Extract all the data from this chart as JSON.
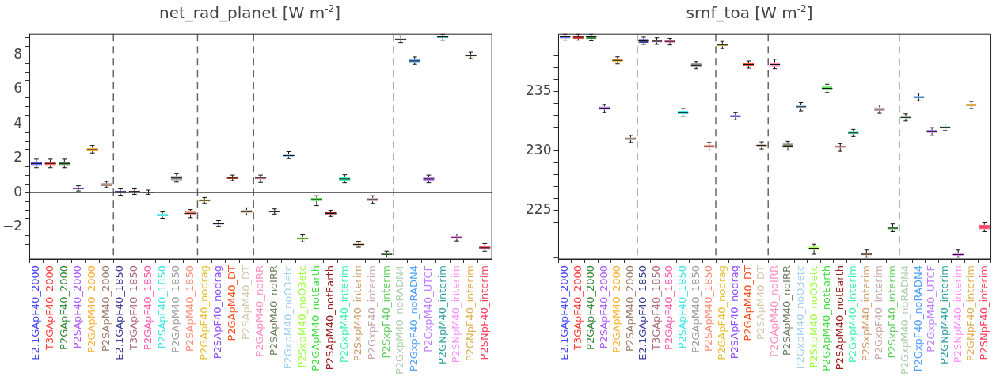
{
  "chart_data": [
    {
      "type": "box",
      "title": "net_rad_planet [W m$^{-2}$]",
      "categories": [
        "E2.1GApF40_2000",
        "T3GApF40_2000",
        "P2GApF40_2000",
        "P2SApF40_2000",
        "P2GApM40_2000",
        "P2SApM40_2000",
        "E2.1GApF40_1850",
        "T3GApF40_1850",
        "P2GApF40_1850",
        "P2SApF40_1850",
        "P2GApM40_1850",
        "P2SApM40_1850",
        "P2GApF40_nodrag",
        "P2SApF40_nodrag",
        "P2GApM40_DT",
        "P2SApM40_DT",
        "P2GApM40_noIRR",
        "P2SApM40_noIRR",
        "P2GxpM40_noO3etc",
        "P2SxpM40_noO3etc",
        "P2GApM40_notEarth",
        "P2SApM40_notEarth",
        "P2GxpM40_interim",
        "P2SxpM40_interim",
        "P2GxpF40_interim",
        "P2SxpF40_interim",
        "P2GxpM40_noRADN4",
        "P2GxpF40_noRADN4",
        "P2GxpM40_UTCF",
        "P2GNpM40_interim",
        "P2SNpM40_interim",
        "P2GNpF40_interim",
        "P2SNpF40_interim"
      ],
      "colors": [
        "#4a4aff",
        "#ff4040",
        "#3a8a3a",
        "#b060ff",
        "#ffb030",
        "#a08070",
        "#404099",
        "#b07080",
        "#ff60b0",
        "#40e8e8",
        "#a0a0a0",
        "#ff9080",
        "#e8c030",
        "#9050ff",
        "#ff5020",
        "#d8c8b0",
        "#ff90c0",
        "#708060",
        "#a0d0f0",
        "#a0ff40",
        "#40e040",
        "#a02020",
        "#40f0b0",
        "#d0a070",
        "#c8a8a8",
        "#60d060",
        "#b0d0b0",
        "#50a0ff",
        "#c080ff",
        "#30a0a0",
        "#ff90ff",
        "#e0b050",
        "#ff4060"
      ],
      "boxes": [
        {
          "low": 1.45,
          "q1": 1.6,
          "median": 1.7,
          "q3": 1.8,
          "high": 1.95
        },
        {
          "low": 1.45,
          "q1": 1.6,
          "median": 1.7,
          "q3": 1.8,
          "high": 1.95
        },
        {
          "low": 1.45,
          "q1": 1.6,
          "median": 1.7,
          "q3": 1.8,
          "high": 1.95
        },
        {
          "low": 0.1,
          "q1": 0.2,
          "median": 0.25,
          "q3": 0.3,
          "high": 0.4
        },
        {
          "low": 2.3,
          "q1": 2.4,
          "median": 2.5,
          "q3": 2.6,
          "high": 2.75
        },
        {
          "low": 0.3,
          "q1": 0.38,
          "median": 0.45,
          "q3": 0.55,
          "high": 0.65
        },
        {
          "low": -0.15,
          "q1": -0.05,
          "median": 0.05,
          "q3": 0.12,
          "high": 0.22
        },
        {
          "low": -0.1,
          "q1": 0.0,
          "median": 0.07,
          "q3": 0.12,
          "high": 0.22
        },
        {
          "low": -0.1,
          "q1": -0.02,
          "median": 0.02,
          "q3": 0.05,
          "high": 0.15
        },
        {
          "low": -1.48,
          "q1": -1.38,
          "median": -1.3,
          "q3": -1.22,
          "high": -1.12
        },
        {
          "low": 0.62,
          "q1": 0.72,
          "median": 0.85,
          "q3": 0.97,
          "high": 1.1
        },
        {
          "low": -1.45,
          "q1": -1.3,
          "median": -1.2,
          "q3": -1.08,
          "high": -0.98
        },
        {
          "low": -0.62,
          "q1": -0.52,
          "median": -0.45,
          "q3": -0.38,
          "high": -0.28
        },
        {
          "low": -1.95,
          "q1": -1.85,
          "median": -1.8,
          "q3": -1.74,
          "high": -1.62
        },
        {
          "low": 0.7,
          "q1": 0.8,
          "median": 0.85,
          "q3": 0.92,
          "high": 1.02
        },
        {
          "low": -1.3,
          "q1": -1.2,
          "median": -1.1,
          "q3": -1.0,
          "high": -0.88
        },
        {
          "low": 0.6,
          "q1": 0.77,
          "median": 0.85,
          "q3": 0.92,
          "high": 1.02
        },
        {
          "low": -1.24,
          "q1": -1.14,
          "median": -1.1,
          "q3": -1.06,
          "high": -0.94
        },
        {
          "low": 1.98,
          "q1": 2.08,
          "median": 2.15,
          "q3": 2.25,
          "high": 2.38
        },
        {
          "low": -2.85,
          "q1": -2.72,
          "median": -2.65,
          "q3": -2.58,
          "high": -2.45
        },
        {
          "low": -0.75,
          "q1": -0.48,
          "median": -0.4,
          "q3": -0.3,
          "high": -0.18
        },
        {
          "low": -1.38,
          "q1": -1.26,
          "median": -1.2,
          "q3": -1.14,
          "high": -1.02
        },
        {
          "low": 0.58,
          "q1": 0.7,
          "median": 0.8,
          "q3": 0.92,
          "high": 1.04
        },
        {
          "low": -3.16,
          "q1": -3.06,
          "median": -3.0,
          "q3": -2.94,
          "high": -2.82
        },
        {
          "low": -0.62,
          "q1": -0.5,
          "median": -0.4,
          "q3": -0.3,
          "high": -0.18
        },
        {
          "low": -3.74,
          "q1": -3.63,
          "median": -3.58,
          "q3": -3.52,
          "high": -3.4
        },
        {
          "low": 8.72,
          "q1": 8.84,
          "median": 8.9,
          "q3": 8.97,
          "high": 9.1
        },
        {
          "low": 7.45,
          "q1": 7.57,
          "median": 7.65,
          "q3": 7.75,
          "high": 7.88
        },
        {
          "low": 0.58,
          "q1": 0.7,
          "median": 0.8,
          "q3": 0.9,
          "high": 1.02
        },
        {
          "low": 8.85,
          "q1": 8.97,
          "median": 9.05,
          "q3": 9.1,
          "high": 9.19
        },
        {
          "low": -2.8,
          "q1": -2.68,
          "median": -2.6,
          "q3": -2.52,
          "high": -2.4
        },
        {
          "low": 7.78,
          "q1": 7.9,
          "median": 7.95,
          "q3": 8.02,
          "high": 8.15
        },
        {
          "low": -3.4,
          "q1": -3.28,
          "median": -3.2,
          "q3": -3.1,
          "high": -2.95
        }
      ],
      "ylim": [
        -3.85,
        9.2
      ],
      "yticks": [
        {
          "value": -3.5,
          "label": null
        },
        {
          "value": -3,
          "label": null
        },
        {
          "value": -2.5,
          "label": null
        },
        {
          "value": -2,
          "label": "−2"
        },
        {
          "value": -1.5,
          "label": null
        },
        {
          "value": -1,
          "label": null
        },
        {
          "value": -0.5,
          "label": null
        },
        0,
        {
          "value": 0.5,
          "label": null
        },
        {
          "value": 1,
          "label": null
        },
        {
          "value": 1.5,
          "label": null
        },
        2,
        {
          "value": 2.5,
          "label": null
        },
        {
          "value": 3,
          "label": null
        },
        {
          "value": 3.5,
          "label": null
        },
        4,
        {
          "value": 4.5,
          "label": null
        },
        {
          "value": 5,
          "label": null
        },
        {
          "value": 5.5,
          "label": null
        },
        6,
        {
          "value": 6.5,
          "label": null
        },
        {
          "value": 7,
          "label": null
        },
        {
          "value": 7.5,
          "label": null
        },
        8,
        {
          "value": 8.5,
          "label": null
        },
        {
          "value": 9,
          "label": null
        }
      ],
      "ref_lines": [
        {
          "axis": "y",
          "value": 0,
          "line_style": "solid"
        }
      ],
      "grid": false,
      "legend": false
    },
    {
      "type": "box",
      "title": "srnf_toa [W m$^{-2}$]",
      "categories": [
        "E2.1GApF40_2000",
        "T3GApF40_2000",
        "P2GApF40_2000",
        "P2SApF40_2000",
        "P2GApM40_2000",
        "P2SApM40_2000",
        "E2.1GApF40_1850",
        "T3GApF40_1850",
        "P2GApF40_1850",
        "P2SApF40_1850",
        "P2GApM40_1850",
        "P2SApM40_1850",
        "P2GApF40_nodrag",
        "P2SApF40_nodrag",
        "P2GApM40_DT",
        "P2SApM40_DT",
        "P2GApM40_noIRR",
        "P2SApM40_noIRR",
        "P2GxpM40_noO3etc",
        "P2SxpM40_noO3etc",
        "P2GApM40_notEarth",
        "P2SApM40_notEarth",
        "P2GxpM40_interim",
        "P2SxpM40_interim",
        "P2GxpF40_interim",
        "P2SxpF40_interim",
        "P2GxpM40_noRADN4",
        "P2GxpF40_noRADN4",
        "P2GxpM40_UTCF",
        "P2GNpM40_interim",
        "P2SNpM40_interim",
        "P2GNpF40_interim",
        "P2SNpF40_interim"
      ],
      "colors": [
        "#4a4aff",
        "#ff4040",
        "#3a8a3a",
        "#b060ff",
        "#ffb030",
        "#a08070",
        "#404099",
        "#b07080",
        "#ff60b0",
        "#40e8e8",
        "#a0a0a0",
        "#ff9080",
        "#e8c030",
        "#9050ff",
        "#ff5020",
        "#d8c8b0",
        "#ff90c0",
        "#708060",
        "#a0d0f0",
        "#a0ff40",
        "#40e040",
        "#a02020",
        "#40f0b0",
        "#d0a070",
        "#c8a8a8",
        "#60d060",
        "#b0d0b0",
        "#50a0ff",
        "#c080ff",
        "#30a0a0",
        "#ff90ff",
        "#e0b050",
        "#ff4060"
      ],
      "boxes": [
        {
          "low": 239.3,
          "q1": 239.45,
          "median": 239.58,
          "q3": 239.64,
          "high": 239.79
        },
        {
          "low": 239.3,
          "q1": 239.42,
          "median": 239.55,
          "q3": 239.62,
          "high": 239.79
        },
        {
          "low": 239.25,
          "q1": 239.42,
          "median": 239.58,
          "q3": 239.68,
          "high": 239.79
        },
        {
          "low": 233.2,
          "q1": 233.45,
          "median": 233.58,
          "q3": 233.72,
          "high": 233.9
        },
        {
          "low": 237.3,
          "q1": 237.45,
          "median": 237.6,
          "q3": 237.75,
          "high": 237.9
        },
        {
          "low": 230.7,
          "q1": 230.9,
          "median": 231.0,
          "q3": 231.12,
          "high": 231.3
        },
        {
          "low": 238.95,
          "q1": 239.08,
          "median": 239.25,
          "q3": 239.4,
          "high": 239.55
        },
        {
          "low": 238.95,
          "q1": 239.12,
          "median": 239.22,
          "q3": 239.32,
          "high": 239.5
        },
        {
          "low": 238.9,
          "q1": 239.1,
          "median": 239.2,
          "q3": 239.3,
          "high": 239.45
        },
        {
          "low": 232.9,
          "q1": 233.08,
          "median": 233.2,
          "q3": 233.35,
          "high": 233.55
        },
        {
          "low": 236.9,
          "q1": 237.08,
          "median": 237.2,
          "q3": 237.35,
          "high": 237.5
        },
        {
          "low": 230.05,
          "q1": 230.25,
          "median": 230.35,
          "q3": 230.5,
          "high": 230.7
        },
        {
          "low": 238.6,
          "q1": 238.8,
          "median": 238.9,
          "q3": 239.0,
          "high": 239.2
        },
        {
          "low": 232.6,
          "q1": 232.8,
          "median": 232.9,
          "q3": 233.0,
          "high": 233.2
        },
        {
          "low": 236.95,
          "q1": 237.15,
          "median": 237.25,
          "q3": 237.35,
          "high": 237.55
        },
        {
          "low": 230.15,
          "q1": 230.35,
          "median": 230.45,
          "q3": 230.55,
          "high": 230.75
        },
        {
          "low": 236.9,
          "q1": 237.1,
          "median": 237.25,
          "q3": 237.45,
          "high": 237.7
        },
        {
          "low": 230.05,
          "q1": 230.25,
          "median": 230.4,
          "q3": 230.6,
          "high": 230.8
        },
        {
          "low": 233.35,
          "q1": 233.58,
          "median": 233.7,
          "q3": 233.85,
          "high": 234.05
        },
        {
          "low": 221.3,
          "q1": 221.65,
          "median": 221.8,
          "q3": 221.95,
          "high": 222.15
        },
        {
          "low": 234.9,
          "q1": 235.1,
          "median": 235.25,
          "q3": 235.4,
          "high": 235.6
        },
        {
          "low": 229.95,
          "q1": 230.25,
          "median": 230.33,
          "q3": 230.4,
          "high": 230.6
        },
        {
          "low": 231.2,
          "q1": 231.4,
          "median": 231.5,
          "q3": 231.6,
          "high": 231.8
        },
        {
          "low": 221.05,
          "q1": 221.2,
          "median": 221.3,
          "q3": 221.42,
          "high": 221.65
        },
        {
          "low": 233.15,
          "q1": 233.35,
          "median": 233.5,
          "q3": 233.65,
          "high": 233.85
        },
        {
          "low": 223.2,
          "q1": 223.38,
          "median": 223.5,
          "q3": 223.62,
          "high": 223.85
        },
        {
          "low": 232.5,
          "q1": 232.7,
          "median": 232.8,
          "q3": 232.9,
          "high": 233.1
        },
        {
          "low": 234.2,
          "q1": 234.4,
          "median": 234.5,
          "q3": 234.6,
          "high": 234.85
        },
        {
          "low": 231.3,
          "q1": 231.5,
          "median": 231.6,
          "q3": 231.75,
          "high": 231.95
        },
        {
          "low": 231.7,
          "q1": 231.88,
          "median": 231.97,
          "q3": 232.05,
          "high": 232.25
        },
        {
          "low": 221.05,
          "q1": 221.17,
          "median": 221.27,
          "q3": 221.4,
          "high": 221.65
        },
        {
          "low": 233.55,
          "q1": 233.75,
          "median": 233.85,
          "q3": 233.95,
          "high": 234.15
        },
        {
          "low": 223.2,
          "q1": 223.4,
          "median": 223.6,
          "q3": 223.78,
          "high": 224.0
        }
      ],
      "ylim": [
        220.9,
        239.8
      ],
      "yticks": [
        {
          "value": 221,
          "label": null
        },
        {
          "value": 222,
          "label": null
        },
        {
          "value": 223,
          "label": null
        },
        {
          "value": 224,
          "label": null
        },
        225,
        {
          "value": 226,
          "label": null
        },
        {
          "value": 227,
          "label": null
        },
        {
          "value": 228,
          "label": null
        },
        {
          "value": 229,
          "label": null
        },
        230,
        {
          "value": 231,
          "label": null
        },
        {
          "value": 232,
          "label": null
        },
        {
          "value": 233,
          "label": null
        },
        {
          "value": 234,
          "label": null
        },
        235,
        {
          "value": 236,
          "label": null
        },
        {
          "value": 237,
          "label": null
        },
        {
          "value": 238,
          "label": null
        },
        {
          "value": 239,
          "label": null
        }
      ],
      "grid": false,
      "legend": false
    }
  ]
}
